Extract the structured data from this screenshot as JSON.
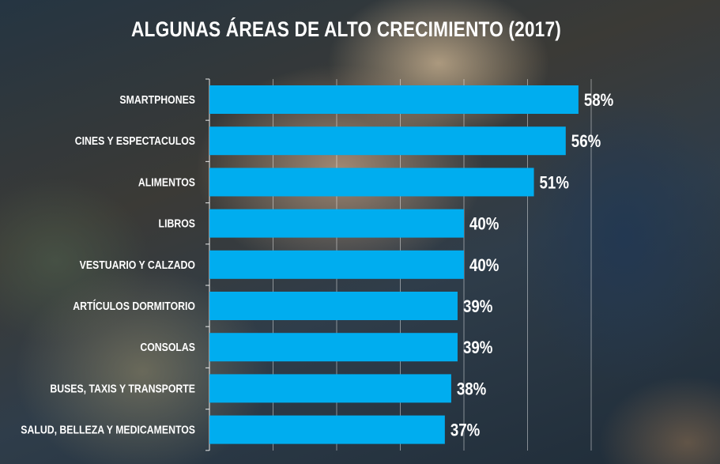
{
  "chart_data": {
    "type": "bar",
    "orientation": "horizontal",
    "title": "ALGUNAS ÁREAS DE ALTO CRECIMIENTO (2017)",
    "categories": [
      "SMARTPHONES",
      "CINES Y ESPECTACULOS",
      "ALIMENTOS",
      "LIBROS",
      "VESTUARIO Y CALZADO",
      "ARTÍCULOS DORMITORIO",
      "CONSOLAS",
      "BUSES, TAXIS Y TRANSPORTE",
      "SALUD, BELLEZA Y MEDICAMENTOS"
    ],
    "values": [
      58,
      56,
      51,
      40,
      40,
      39,
      39,
      38,
      37
    ],
    "value_labels": [
      "58%",
      "56%",
      "51%",
      "40%",
      "40%",
      "39%",
      "39%",
      "38%",
      "37%"
    ],
    "xlim": [
      0,
      64
    ],
    "grid": true,
    "bar_color": "#00adef",
    "label_color": "#ffffff",
    "grid_color": "#ffffff",
    "legend": "none"
  }
}
